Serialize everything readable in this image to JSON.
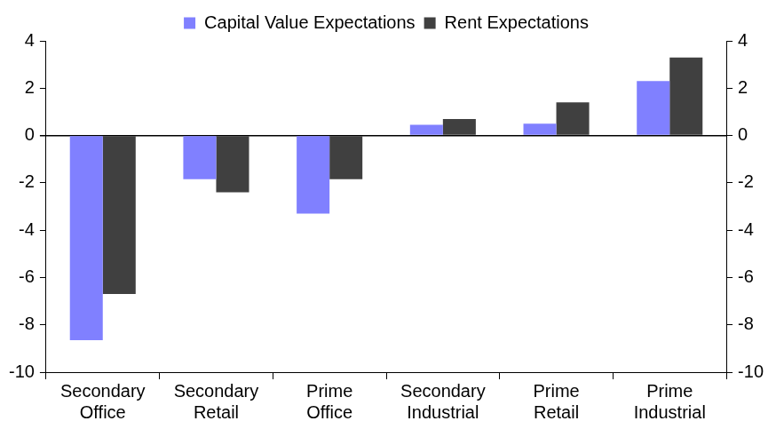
{
  "chart_data": {
    "type": "bar",
    "categories": [
      "Secondary Office",
      "Secondary Retail",
      "Prime Office",
      "Secondary Industrial",
      "Prime Retail",
      "Prime Industrial"
    ],
    "series": [
      {
        "name": "Capital Value Expectations",
        "color": "#8080ff",
        "values": [
          -8.65,
          -1.85,
          -3.3,
          0.45,
          0.5,
          2.3
        ]
      },
      {
        "name": "Rent Expectations",
        "color": "#404040",
        "values": [
          -6.7,
          -2.4,
          -1.85,
          0.7,
          1.4,
          3.3
        ]
      }
    ],
    "ylim": [
      -10,
      4
    ],
    "yticks": [
      -10,
      -8,
      -6,
      -4,
      -2,
      0,
      2,
      4
    ],
    "y2lim": [
      -10,
      4
    ],
    "y2ticks": [
      -10,
      -8,
      -6,
      -4,
      -2,
      0,
      2,
      4
    ],
    "grid": false,
    "legend": "top"
  }
}
